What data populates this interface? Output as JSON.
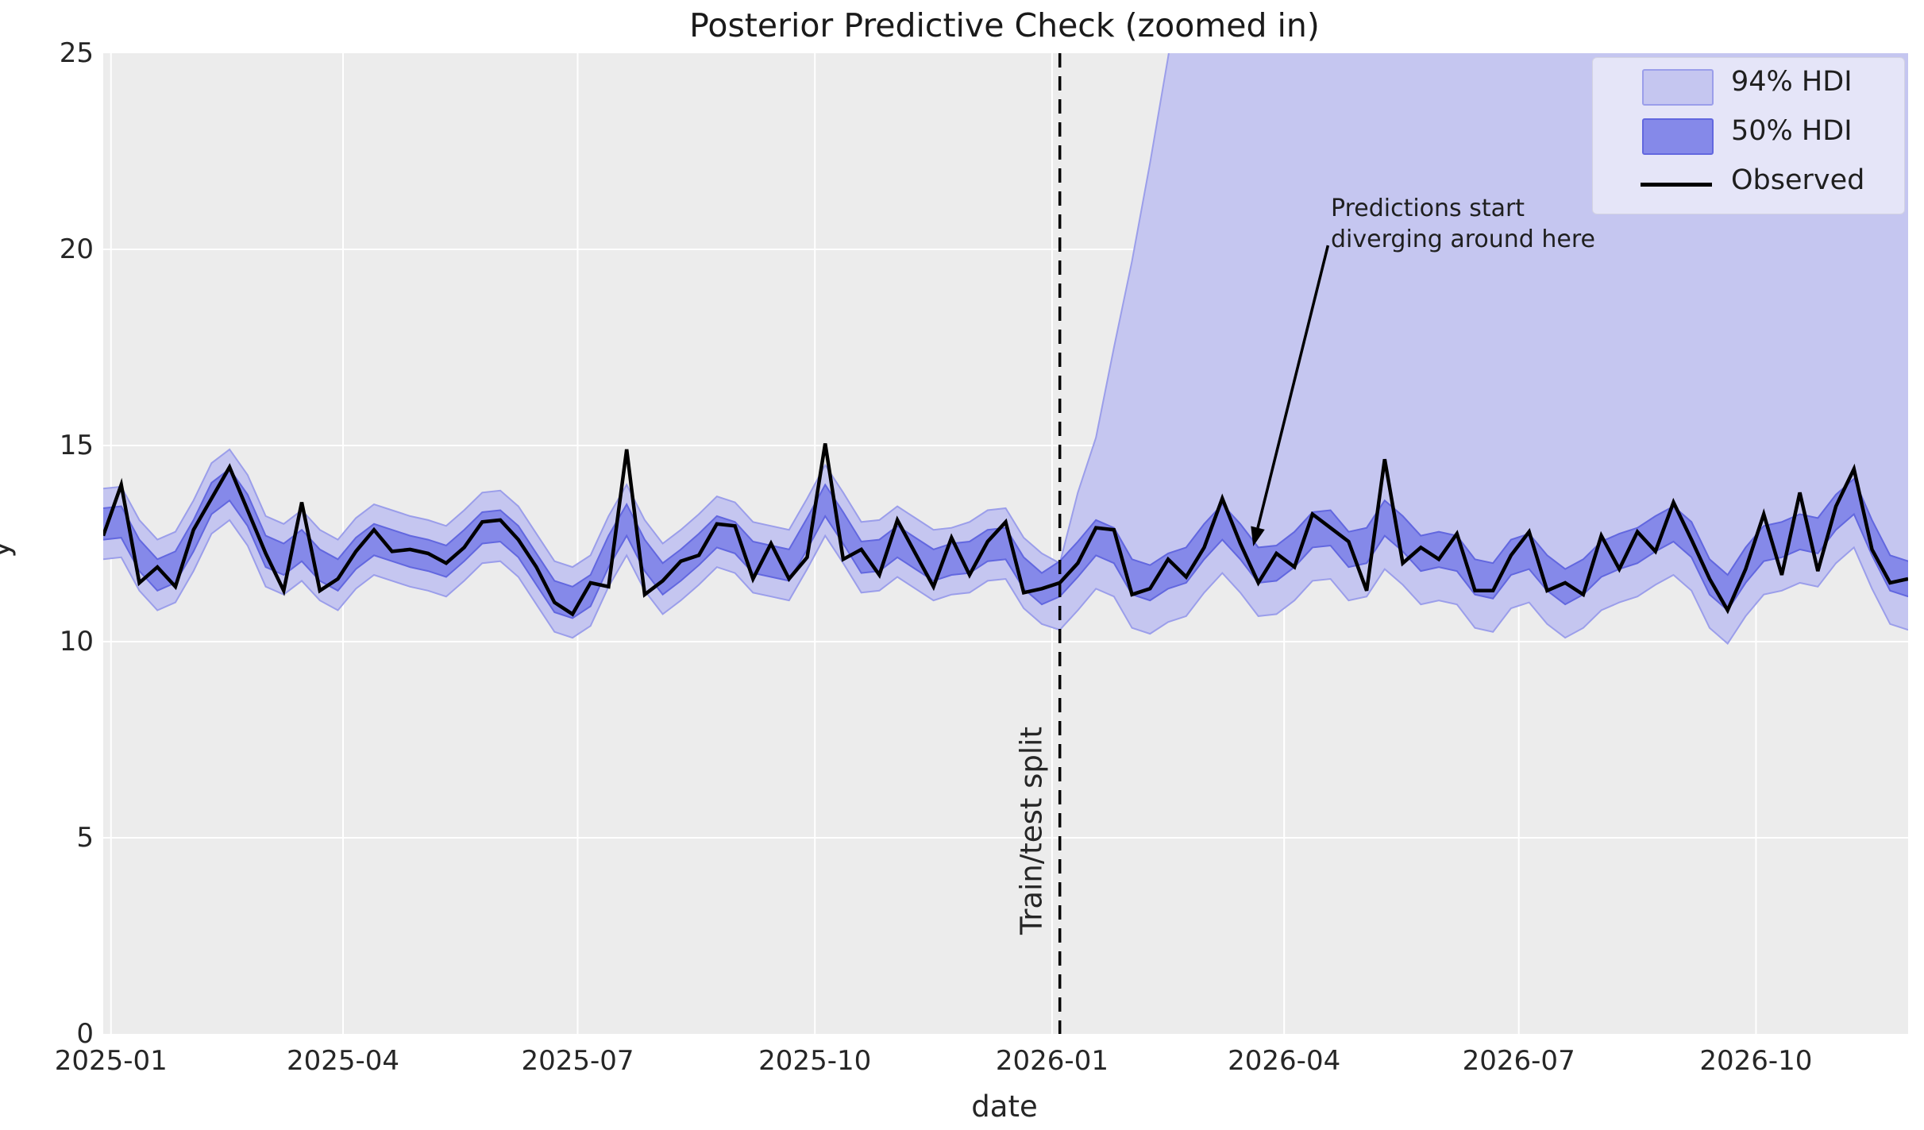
{
  "figure": {
    "title": "Posterior Predictive Check (zoomed in)",
    "xlabel": "date",
    "ylabel": "y"
  },
  "legend": {
    "items": [
      {
        "label": "94% HDI",
        "swatch": "hdi94"
      },
      {
        "label": "50% HDI",
        "swatch": "hdi50"
      },
      {
        "label": "Observed",
        "swatch": "line"
      }
    ]
  },
  "split": {
    "label": "Train/test split",
    "day": 371
  },
  "annotation": {
    "line1": "Predictions start",
    "line2": "diverging around here",
    "arrow_from": {
      "day": 475,
      "value": 20.1
    },
    "arrow_to": {
      "day": 446,
      "value": 12.43
    }
  },
  "axes": {
    "ylim": [
      0,
      25
    ],
    "y_ticks": [
      0,
      5,
      10,
      15,
      20,
      25
    ],
    "x_ticks": [
      {
        "label": "2025-01",
        "day": 3
      },
      {
        "label": "2025-04",
        "day": 93
      },
      {
        "label": "2025-07",
        "day": 184
      },
      {
        "label": "2025-10",
        "day": 276
      },
      {
        "label": "2026-01",
        "day": 368
      },
      {
        "label": "2026-04",
        "day": 458
      },
      {
        "label": "2026-07",
        "day": 549
      },
      {
        "label": "2026-10",
        "day": 641
      }
    ]
  },
  "chart_data": {
    "type": "line",
    "title": "Posterior Predictive Check (zoomed in)",
    "xlabel": "date",
    "ylabel": "y",
    "x_start_date": "2024-12-29",
    "x_step_days": 7,
    "n_points": 101,
    "train_test_split_day": 371,
    "colors": {
      "background": "#ececec",
      "grid": "#ffffff",
      "hdi94_fill": "#c5c6f0",
      "hdi94_edge": "#9b9eea",
      "hdi50_fill": "#8589e9",
      "hdi50_edge": "#6267df",
      "observed": "#000000",
      "split_line": "#000000"
    },
    "observed": [
      12.7,
      14.0,
      11.5,
      11.9,
      11.4,
      12.85,
      13.65,
      14.45,
      13.35,
      12.25,
      11.3,
      13.55,
      11.3,
      11.6,
      12.3,
      12.85,
      12.3,
      12.35,
      12.25,
      12.0,
      12.4,
      13.05,
      13.1,
      12.6,
      11.9,
      11.0,
      10.7,
      11.5,
      11.4,
      14.9,
      11.2,
      11.55,
      12.05,
      12.2,
      13.0,
      12.95,
      11.6,
      12.5,
      11.6,
      12.15,
      15.05,
      12.1,
      12.35,
      11.7,
      13.1,
      12.25,
      11.4,
      12.65,
      11.7,
      12.55,
      13.05,
      11.25,
      11.35,
      11.5,
      12.0,
      12.9,
      12.85,
      11.2,
      11.35,
      12.1,
      11.65,
      12.4,
      13.65,
      12.5,
      11.5,
      12.25,
      11.9,
      13.25,
      12.9,
      12.55,
      11.3,
      14.65,
      12.0,
      12.4,
      12.1,
      12.75,
      11.3,
      11.3,
      12.2,
      12.8,
      11.3,
      11.5,
      11.2,
      12.7,
      11.85,
      12.8,
      12.3,
      13.55,
      12.6,
      11.6,
      10.8,
      11.85,
      13.25,
      11.7,
      13.8,
      11.8,
      13.45,
      14.4,
      12.35,
      11.5,
      11.6
    ],
    "hdi50_lower": [
      12.6,
      12.65,
      11.8,
      11.3,
      11.5,
      12.3,
      13.25,
      13.6,
      12.95,
      11.9,
      11.7,
      12.05,
      11.55,
      11.3,
      11.85,
      12.2,
      12.05,
      11.9,
      11.8,
      11.65,
      12.05,
      12.5,
      12.55,
      12.15,
      11.45,
      10.75,
      10.6,
      10.9,
      11.9,
      12.7,
      11.8,
      11.2,
      11.55,
      11.95,
      12.4,
      12.25,
      11.75,
      11.65,
      11.55,
      12.35,
      13.2,
      12.5,
      11.75,
      11.8,
      12.15,
      11.85,
      11.55,
      11.7,
      11.75,
      12.05,
      12.1,
      11.35,
      10.95,
      11.15,
      11.65,
      12.2,
      12.0,
      11.2,
      11.05,
      11.35,
      11.5,
      12.1,
      12.6,
      12.1,
      11.5,
      11.55,
      11.9,
      12.4,
      12.45,
      11.9,
      12.0,
      12.7,
      12.3,
      11.8,
      11.9,
      11.8,
      11.2,
      11.1,
      11.7,
      11.85,
      11.3,
      10.95,
      11.2,
      11.65,
      11.85,
      12.0,
      12.3,
      12.55,
      12.15,
      11.2,
      10.8,
      11.5,
      12.05,
      12.15,
      12.35,
      12.25,
      12.85,
      13.25,
      12.2,
      11.3,
      11.15
    ],
    "hdi50_upper": [
      13.4,
      13.45,
      12.6,
      12.1,
      12.3,
      13.1,
      14.05,
      14.4,
      13.75,
      12.7,
      12.5,
      12.85,
      12.35,
      12.1,
      12.65,
      13.0,
      12.85,
      12.7,
      12.6,
      12.45,
      12.85,
      13.3,
      13.35,
      12.95,
      12.25,
      11.55,
      11.4,
      11.7,
      12.7,
      13.5,
      12.6,
      12.0,
      12.35,
      12.75,
      13.2,
      13.05,
      12.55,
      12.45,
      12.35,
      13.15,
      14.0,
      13.3,
      12.55,
      12.6,
      12.95,
      12.65,
      12.35,
      12.5,
      12.55,
      12.85,
      12.9,
      12.15,
      11.75,
      12.05,
      12.55,
      13.1,
      12.9,
      12.1,
      11.95,
      12.25,
      12.4,
      13.0,
      13.5,
      13.0,
      12.4,
      12.45,
      12.8,
      13.3,
      13.35,
      12.8,
      12.9,
      13.6,
      13.2,
      12.7,
      12.8,
      12.7,
      12.1,
      12.0,
      12.6,
      12.75,
      12.2,
      11.85,
      12.1,
      12.55,
      12.75,
      12.9,
      13.2,
      13.45,
      13.05,
      12.1,
      11.7,
      12.4,
      12.95,
      13.05,
      13.25,
      13.15,
      13.75,
      14.15,
      13.1,
      12.2,
      12.05
    ],
    "hdi94_lower": [
      12.1,
      12.15,
      11.3,
      10.8,
      11.0,
      11.8,
      12.75,
      13.1,
      12.45,
      11.4,
      11.2,
      11.55,
      11.05,
      10.8,
      11.35,
      11.7,
      11.55,
      11.4,
      11.3,
      11.15,
      11.55,
      12.0,
      12.05,
      11.65,
      10.95,
      10.25,
      10.1,
      10.4,
      11.4,
      12.2,
      11.3,
      10.7,
      11.05,
      11.45,
      11.9,
      11.75,
      11.25,
      11.15,
      11.05,
      11.85,
      12.7,
      12.0,
      11.25,
      11.3,
      11.65,
      11.35,
      11.05,
      11.2,
      11.25,
      11.55,
      11.6,
      10.85,
      10.45,
      10.3,
      10.8,
      11.35,
      11.15,
      10.35,
      10.2,
      10.5,
      10.65,
      11.25,
      11.75,
      11.25,
      10.65,
      10.7,
      11.05,
      11.55,
      11.6,
      11.05,
      11.15,
      11.85,
      11.45,
      10.95,
      11.05,
      10.95,
      10.35,
      10.25,
      10.85,
      11.0,
      10.45,
      10.1,
      10.35,
      10.8,
      11.0,
      11.15,
      11.45,
      11.7,
      11.3,
      10.35,
      9.95,
      10.65,
      11.2,
      11.3,
      11.5,
      11.4,
      12.0,
      12.4,
      11.35,
      10.45,
      10.3
    ],
    "hdi94_upper": [
      13.9,
      13.95,
      13.1,
      12.6,
      12.8,
      13.6,
      14.55,
      14.9,
      14.25,
      13.2,
      13.0,
      13.35,
      12.85,
      12.6,
      13.15,
      13.5,
      13.35,
      13.2,
      13.1,
      12.95,
      13.35,
      13.8,
      13.85,
      13.45,
      12.75,
      12.05,
      11.9,
      12.2,
      13.2,
      14.0,
      13.1,
      12.5,
      12.85,
      13.25,
      13.7,
      13.55,
      13.05,
      12.95,
      12.85,
      13.65,
      14.5,
      13.8,
      13.05,
      13.1,
      13.45,
      13.15,
      12.85,
      12.9,
      13.05,
      13.35,
      13.4,
      12.65,
      12.25,
      12.0,
      13.8,
      15.2,
      17.5,
      19.7,
      22.2,
      24.9,
      27.8,
      30,
      30,
      30,
      30,
      30,
      30,
      30,
      30,
      30,
      30,
      30,
      30,
      30,
      30,
      30,
      30,
      30,
      30,
      30,
      30,
      30,
      30,
      30,
      30,
      30,
      30,
      30,
      30,
      30,
      30,
      30,
      30,
      30,
      30,
      30,
      30,
      30,
      30,
      30,
      30
    ]
  }
}
